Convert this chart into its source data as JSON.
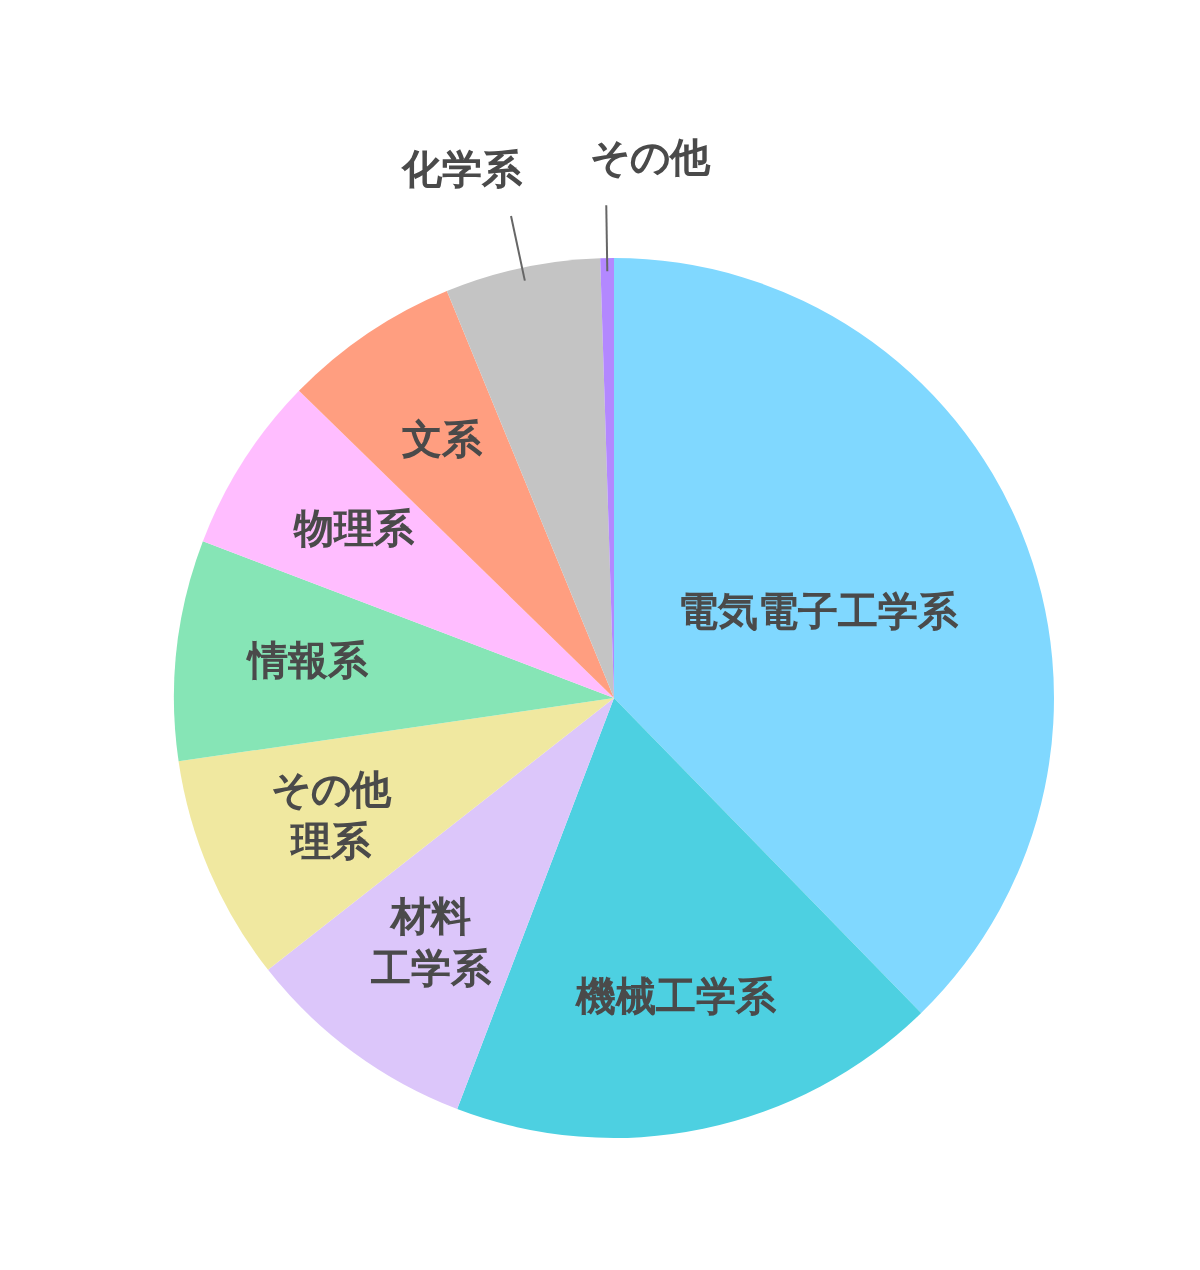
{
  "chart_data": {
    "type": "pie",
    "categories": [
      "電気電子工学系",
      "機械工学系",
      "材料工学系",
      "その他理系",
      "情報系",
      "物理系",
      "文系",
      "化学系",
      "その他"
    ],
    "values": [
      37.7,
      18.1,
      8.6,
      8.3,
      8.1,
      6.5,
      6.5,
      5.7,
      0.5
    ],
    "colors": [
      "#80d8ff",
      "#4dd0e1",
      "#dcc6fa",
      "#f0e8a0",
      "#86e5b6",
      "#ffbdff",
      "#ff9e80",
      "#c4c4c4",
      "#b388ff"
    ]
  }
}
